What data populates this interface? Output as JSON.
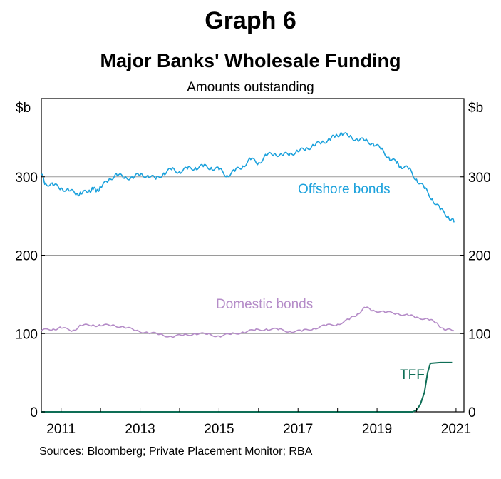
{
  "graph_label": "Graph 6",
  "sources": "Sources: Bloomberg; Private Placement Monitor; RBA",
  "colors": {
    "offshore": "#1ba1dc",
    "domestic": "#b58cc8",
    "tff": "#0e6e56",
    "gridline": "#9a9a9a",
    "axis": "#000000"
  },
  "chart_data": {
    "type": "line",
    "title": "Major Banks' Wholesale Funding",
    "subtitle": "Amounts outstanding",
    "ylabel_left": "$b",
    "ylabel_right": "$b",
    "ylim": [
      0,
      400
    ],
    "yticks": [
      0,
      100,
      200,
      300
    ],
    "xlim": [
      2010.5,
      2021.2
    ],
    "xticks": [
      2011,
      2013,
      2015,
      2017,
      2019,
      2021
    ],
    "xtick_labels": [
      "2011",
      "2013",
      "2015",
      "2017",
      "2019",
      "2021"
    ],
    "gridlines": [
      100,
      200,
      300
    ],
    "series": [
      {
        "name": "Offshore bonds",
        "x": [
          2010.5,
          2010.6,
          2010.8,
          2011.0,
          2011.2,
          2011.4,
          2011.5,
          2011.7,
          2011.8,
          2011.9,
          2012.0,
          2012.2,
          2012.4,
          2012.6,
          2012.8,
          2013.0,
          2013.2,
          2013.4,
          2013.6,
          2013.8,
          2014.0,
          2014.2,
          2014.4,
          2014.6,
          2014.8,
          2015.0,
          2015.2,
          2015.4,
          2015.6,
          2015.8,
          2016.0,
          2016.2,
          2016.4,
          2016.6,
          2016.8,
          2017.0,
          2017.2,
          2017.4,
          2017.6,
          2017.8,
          2017.95,
          2018.1,
          2018.3,
          2018.5,
          2018.7,
          2018.9,
          2019.1,
          2019.3,
          2019.5,
          2019.6,
          2019.8,
          2020.0,
          2020.2,
          2020.4,
          2020.6,
          2020.8,
          2020.95
        ],
        "values": [
          303,
          292,
          289,
          286,
          282,
          279,
          278,
          282,
          285,
          282,
          287,
          295,
          304,
          298,
          300,
          302,
          302,
          297,
          305,
          309,
          307,
          310,
          312,
          313,
          312,
          309,
          302,
          307,
          314,
          322,
          318,
          327,
          330,
          327,
          330,
          332,
          336,
          340,
          344,
          348,
          352,
          356,
          351,
          348,
          346,
          343,
          335,
          325,
          317,
          314,
          310,
          297,
          285,
          272,
          258,
          250,
          242
        ]
      },
      {
        "name": "Domestic bonds",
        "x": [
          2010.5,
          2010.8,
          2011.0,
          2011.3,
          2011.5,
          2011.8,
          2012.0,
          2012.3,
          2012.6,
          2012.9,
          2013.2,
          2013.5,
          2013.8,
          2014.1,
          2014.4,
          2014.7,
          2015.0,
          2015.3,
          2015.6,
          2015.9,
          2016.2,
          2016.5,
          2016.8,
          2017.1,
          2017.4,
          2017.7,
          2018.0,
          2018.3,
          2018.5,
          2018.7,
          2018.9,
          2019.2,
          2019.5,
          2019.8,
          2020.0,
          2020.3,
          2020.5,
          2020.7,
          2020.95
        ],
        "values": [
          104,
          106,
          107,
          104,
          110,
          111,
          110,
          111,
          108,
          104,
          101,
          99,
          96,
          98,
          100,
          99,
          97,
          99,
          102,
          104,
          106,
          105,
          103,
          103,
          107,
          110,
          112,
          118,
          125,
          133,
          130,
          127,
          126,
          123,
          121,
          118,
          114,
          105,
          104
        ]
      },
      {
        "name": "TFF",
        "x": [
          2010.5,
          2019.9,
          2020.0,
          2020.1,
          2020.2,
          2020.28,
          2020.35,
          2020.6,
          2020.9
        ],
        "values": [
          0,
          0,
          2,
          10,
          25,
          50,
          62,
          63,
          63
        ]
      }
    ],
    "annotations": [
      {
        "series": "Offshore bonds",
        "text": "Offshore bonds"
      },
      {
        "series": "Domestic bonds",
        "text": "Domestic bonds"
      },
      {
        "series": "TFF",
        "text": "TFF"
      }
    ]
  }
}
